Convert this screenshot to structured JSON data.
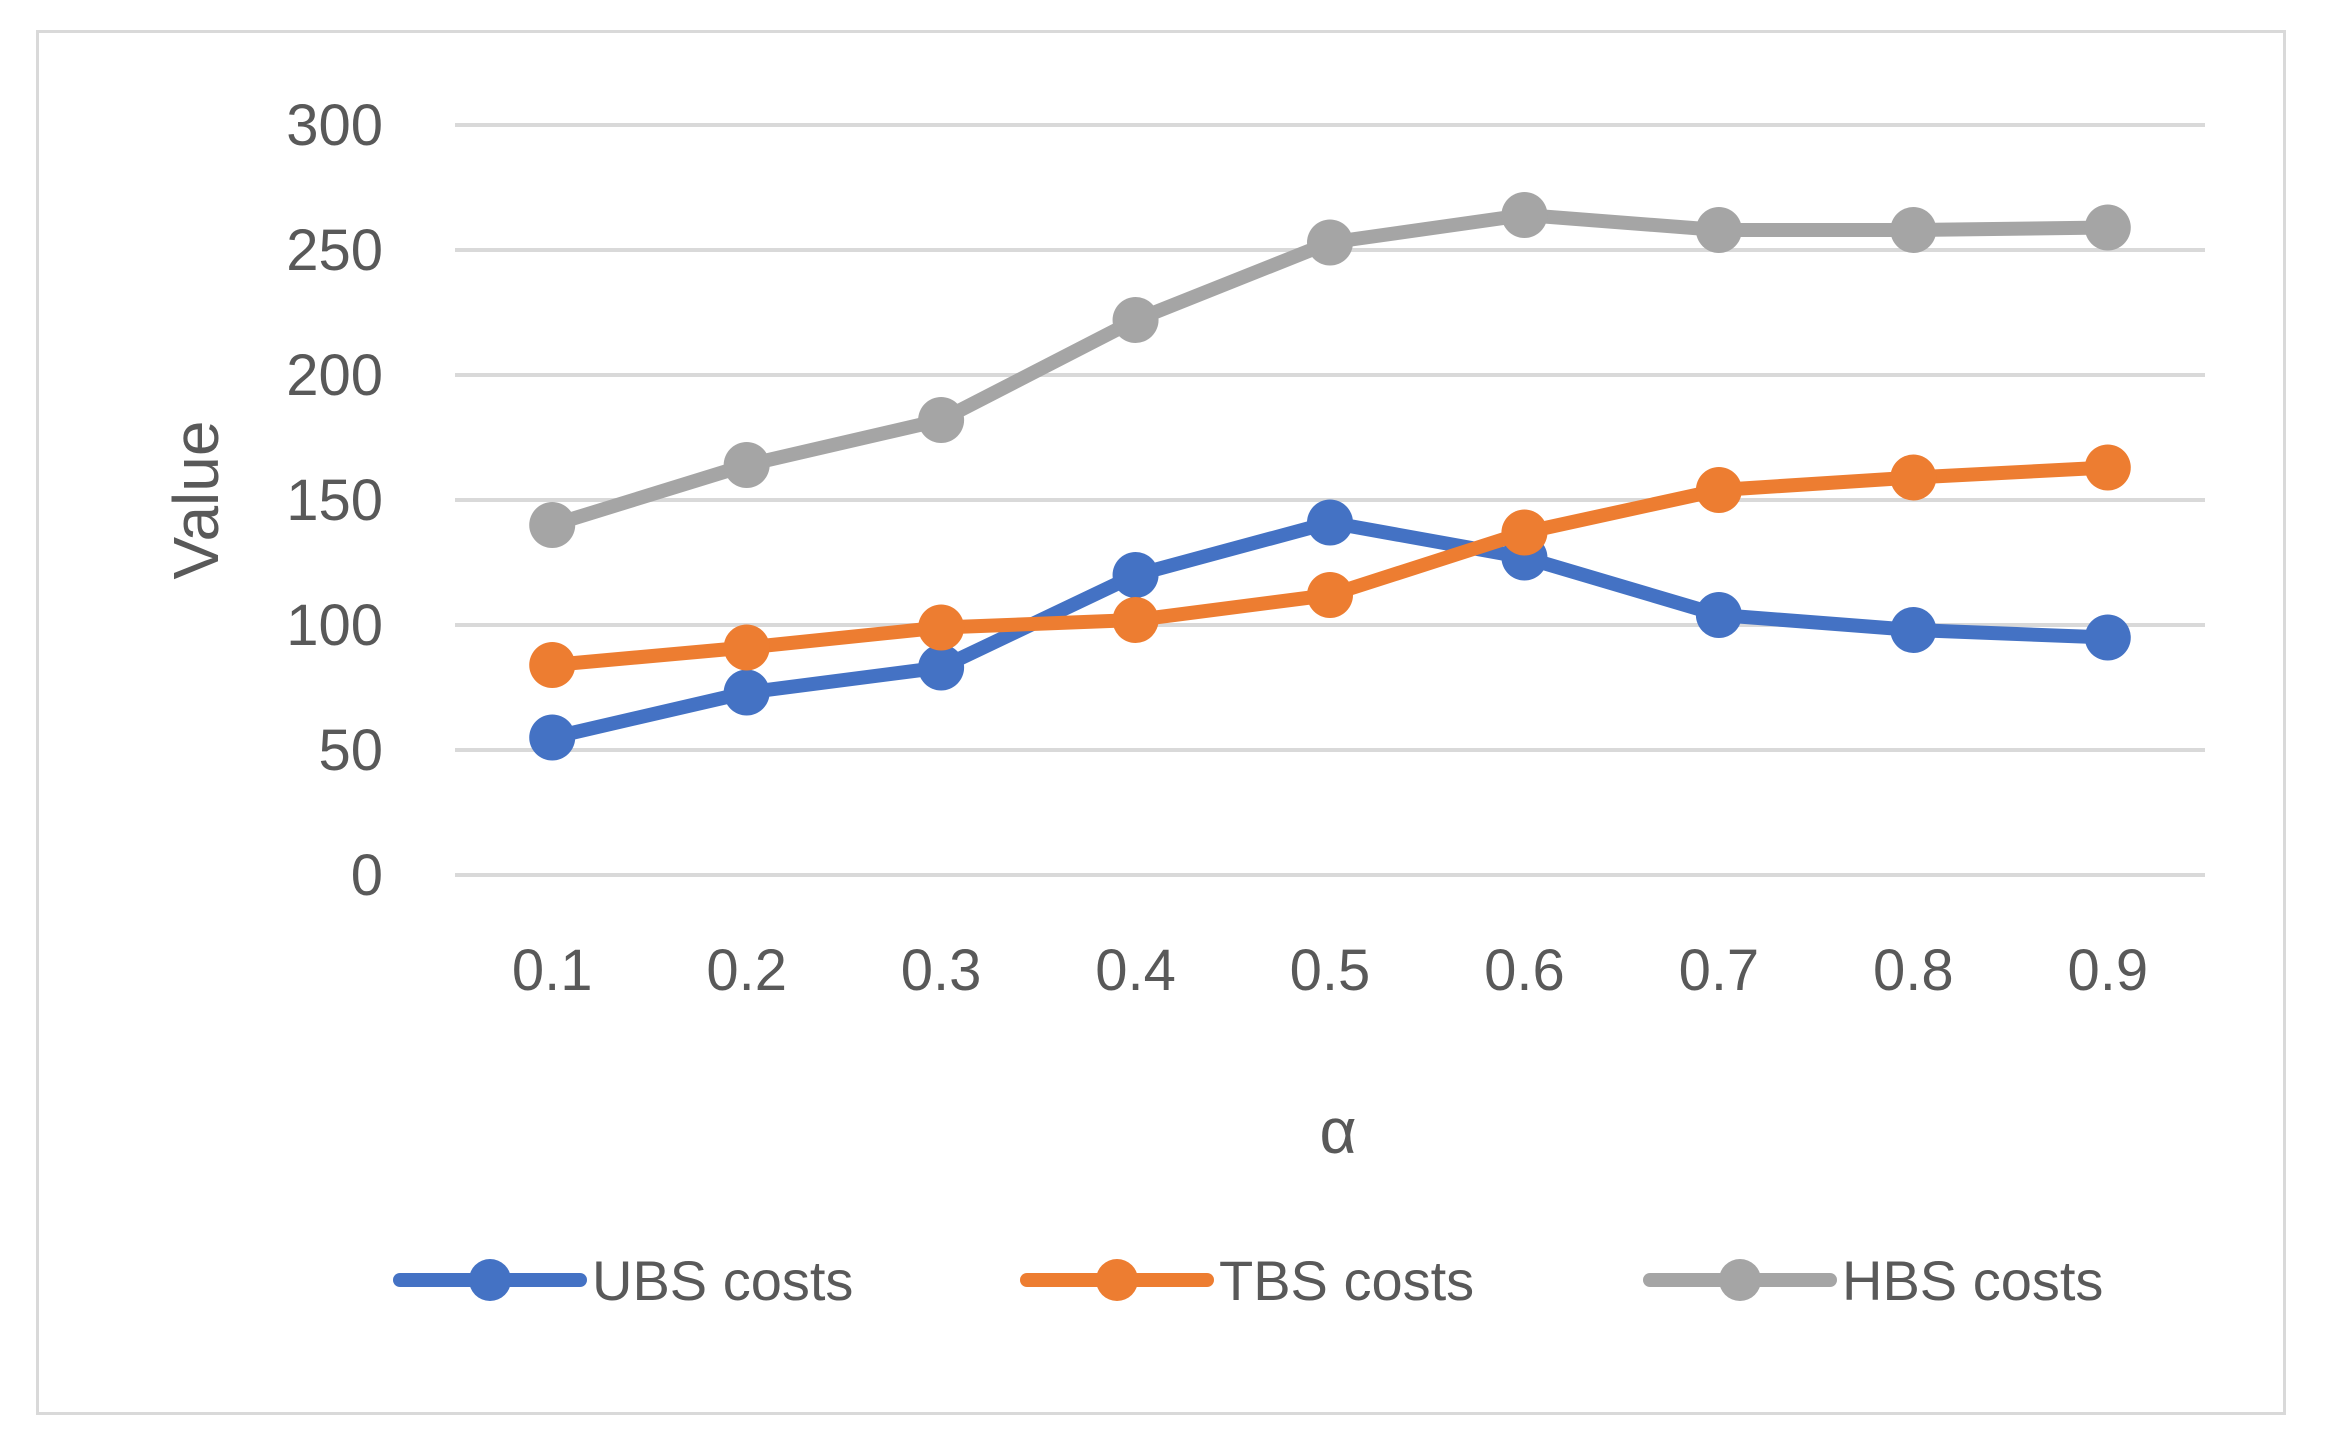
{
  "chart_data": {
    "type": "line",
    "title": "",
    "xlabel": "α",
    "ylabel": "Value",
    "ylim": [
      0,
      300
    ],
    "yticks": [
      "0",
      "50",
      "100",
      "150",
      "200",
      "250",
      "300"
    ],
    "grid": true,
    "legend": "bottom",
    "categories": [
      "0.1",
      "0.2",
      "0.3",
      "0.4",
      "0.5",
      "0.6",
      "0.7",
      "0.8",
      "0.9"
    ],
    "series": [
      {
        "name": "UBS costs",
        "color": "#4472c4",
        "values": [
          55,
          73,
          83,
          120,
          141,
          127,
          104,
          98,
          95
        ]
      },
      {
        "name": "TBS costs",
        "color": "#ed7d31",
        "values": [
          84,
          91,
          99,
          102,
          112,
          137,
          154,
          159,
          163
        ]
      },
      {
        "name": "HBS costs",
        "color": "#a5a5a5",
        "values": [
          140,
          164,
          182,
          222,
          253,
          264,
          258,
          258,
          259
        ]
      }
    ]
  }
}
